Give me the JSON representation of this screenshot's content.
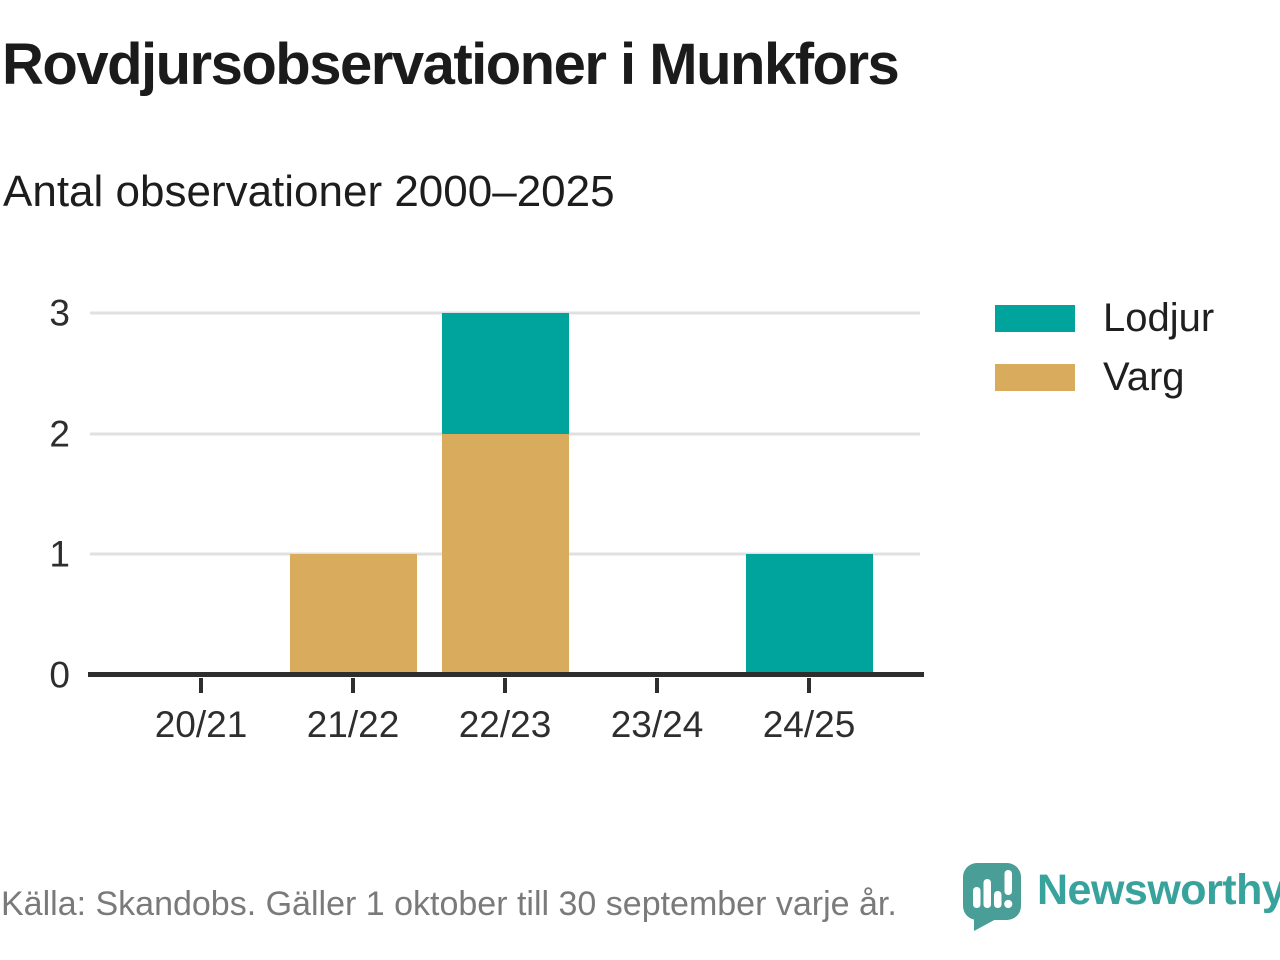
{
  "title": "Rovdjursobservationer i Munkfors",
  "subtitle": "Antal observationer 2000–2025",
  "footer": {
    "source": "Källa: Skandobs. Gäller 1 oktober till 30 september varje år.",
    "brand": "Newsworthy"
  },
  "colors": {
    "lodjur": "#00A49C",
    "varg": "#D8AC5C",
    "grid": "#E0E0E0",
    "axis_line": "#2E2E2E",
    "axis_text": "#2E2E2E",
    "title_text": "#1B1B1B",
    "source_text": "#7A7A7A",
    "brand_text": "#38A39C",
    "logo_bubble": "#4A9E98"
  },
  "legend": {
    "items": [
      {
        "label": "Lodjur",
        "color": "#00A49C"
      },
      {
        "label": "Varg",
        "color": "#D8AC5C"
      }
    ]
  },
  "chart_data": {
    "type": "bar",
    "stacked": true,
    "title": "Rovdjursobservationer i Munkfors",
    "subtitle": "Antal observationer 2000–2025",
    "categories": [
      "20/21",
      "21/22",
      "22/23",
      "23/24",
      "24/25"
    ],
    "series": [
      {
        "name": "Varg",
        "color": "#D8AC5C",
        "values": [
          0,
          1,
          2,
          0,
          0
        ]
      },
      {
        "name": "Lodjur",
        "color": "#00A49C",
        "values": [
          0,
          0,
          1,
          0,
          1
        ]
      }
    ],
    "xlabel": "",
    "ylabel": "",
    "ylim": [
      0,
      3
    ],
    "yticks": [
      0,
      1,
      2,
      3
    ],
    "grid": true,
    "legend_position": "top-right",
    "stack_order_bottom_to_top": [
      "Varg",
      "Lodjur"
    ],
    "source": "Källa: Skandobs. Gäller 1 oktober till 30 september varje år."
  }
}
